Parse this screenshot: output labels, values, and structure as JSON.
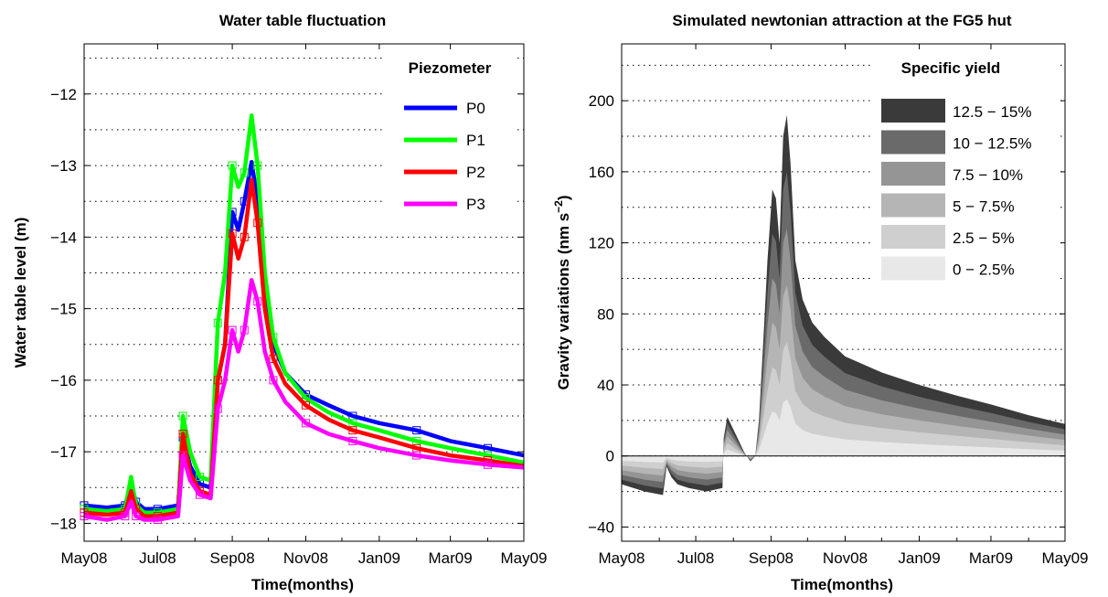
{
  "chart_data": [
    {
      "type": "line",
      "title": "Water table fluctuation",
      "xlabel": "Time(months)",
      "ylabel": "Water table level (m)",
      "xticks": [
        "May08",
        "Jul08",
        "Sep08",
        "Nov08",
        "Jan09",
        "Mar09",
        "May09"
      ],
      "xlim": [
        "2008-05-01",
        "2009-05-01"
      ],
      "ylim": [
        -18.25,
        -11.3
      ],
      "yticks": [
        -18,
        -17,
        -16,
        -15,
        -14,
        -13,
        -12
      ],
      "grid": "horizontal dotted",
      "legend": {
        "title": "Piezometer",
        "position": "top-right"
      },
      "series": [
        {
          "name": "P0",
          "color": "#0000ff",
          "x": [
            "2008-05-01",
            "2008-05-20",
            "2008-06-04",
            "2008-06-09",
            "2008-06-13",
            "2008-06-20",
            "2008-07-01",
            "2008-07-18",
            "2008-07-22",
            "2008-07-28",
            "2008-08-05",
            "2008-08-14",
            "2008-08-20",
            "2008-08-26",
            "2008-09-01",
            "2008-09-06",
            "2008-09-11",
            "2008-09-17",
            "2008-09-22",
            "2008-09-28",
            "2008-10-05",
            "2008-10-15",
            "2008-11-01",
            "2008-11-20",
            "2008-12-10",
            "2009-01-01",
            "2009-02-01",
            "2009-03-01",
            "2009-04-01",
            "2009-05-01"
          ],
          "y": [
            -17.75,
            -17.78,
            -17.75,
            -17.45,
            -17.7,
            -17.8,
            -17.8,
            -17.75,
            -16.8,
            -17.2,
            -17.45,
            -17.5,
            -16.0,
            -15.5,
            -13.65,
            -13.9,
            -13.5,
            -12.95,
            -13.5,
            -14.8,
            -15.5,
            -15.9,
            -16.2,
            -16.35,
            -16.5,
            -16.6,
            -16.7,
            -16.85,
            -16.95,
            -17.05
          ]
        },
        {
          "name": "P1",
          "color": "#00ff00",
          "x": [
            "2008-05-01",
            "2008-05-20",
            "2008-06-04",
            "2008-06-09",
            "2008-06-13",
            "2008-06-20",
            "2008-07-01",
            "2008-07-18",
            "2008-07-22",
            "2008-07-28",
            "2008-08-05",
            "2008-08-14",
            "2008-08-20",
            "2008-08-26",
            "2008-09-01",
            "2008-09-06",
            "2008-09-11",
            "2008-09-17",
            "2008-09-22",
            "2008-09-28",
            "2008-10-05",
            "2008-10-15",
            "2008-11-01",
            "2008-11-20",
            "2008-12-10",
            "2009-01-01",
            "2009-02-01",
            "2009-03-01",
            "2009-04-01",
            "2009-05-01"
          ],
          "y": [
            -17.8,
            -17.83,
            -17.8,
            -17.35,
            -17.75,
            -17.85,
            -17.85,
            -17.8,
            -16.5,
            -17.0,
            -17.35,
            -17.4,
            -15.2,
            -14.5,
            -13.0,
            -13.3,
            -13.1,
            -12.3,
            -13.0,
            -14.5,
            -15.4,
            -15.9,
            -16.25,
            -16.45,
            -16.6,
            -16.7,
            -16.85,
            -16.95,
            -17.05,
            -17.15
          ]
        },
        {
          "name": "P2",
          "color": "#ff0000",
          "x": [
            "2008-05-01",
            "2008-05-20",
            "2008-06-04",
            "2008-06-09",
            "2008-06-13",
            "2008-06-20",
            "2008-07-01",
            "2008-07-18",
            "2008-07-22",
            "2008-07-28",
            "2008-08-05",
            "2008-08-14",
            "2008-08-20",
            "2008-08-26",
            "2008-09-01",
            "2008-09-06",
            "2008-09-11",
            "2008-09-17",
            "2008-09-22",
            "2008-09-28",
            "2008-10-05",
            "2008-10-15",
            "2008-11-01",
            "2008-11-20",
            "2008-12-10",
            "2009-01-01",
            "2009-02-01",
            "2009-03-01",
            "2009-04-01",
            "2009-05-01"
          ],
          "y": [
            -17.85,
            -17.88,
            -17.85,
            -17.55,
            -17.8,
            -17.9,
            -17.9,
            -17.85,
            -16.75,
            -17.3,
            -17.55,
            -17.6,
            -16.0,
            -15.5,
            -13.95,
            -14.3,
            -14.0,
            -13.2,
            -13.8,
            -15.0,
            -15.7,
            -16.05,
            -16.35,
            -16.55,
            -16.7,
            -16.8,
            -16.95,
            -17.05,
            -17.12,
            -17.2
          ]
        },
        {
          "name": "P3",
          "color": "#ff00ff",
          "x": [
            "2008-05-01",
            "2008-05-20",
            "2008-06-04",
            "2008-06-09",
            "2008-06-13",
            "2008-06-20",
            "2008-07-01",
            "2008-07-18",
            "2008-07-22",
            "2008-07-28",
            "2008-08-05",
            "2008-08-14",
            "2008-08-20",
            "2008-08-26",
            "2008-09-01",
            "2008-09-06",
            "2008-09-11",
            "2008-09-17",
            "2008-09-22",
            "2008-09-28",
            "2008-10-05",
            "2008-10-15",
            "2008-11-01",
            "2008-11-20",
            "2008-12-10",
            "2009-01-01",
            "2009-02-01",
            "2009-03-01",
            "2009-04-01",
            "2009-05-01"
          ],
          "y": [
            -17.9,
            -17.95,
            -17.9,
            -17.7,
            -17.9,
            -17.95,
            -17.95,
            -17.9,
            -17.05,
            -17.4,
            -17.6,
            -17.65,
            -16.4,
            -16.0,
            -15.3,
            -15.6,
            -15.3,
            -14.6,
            -14.9,
            -15.6,
            -16.0,
            -16.3,
            -16.6,
            -16.75,
            -16.85,
            -16.95,
            -17.05,
            -17.12,
            -17.18,
            -17.22
          ]
        }
      ]
    },
    {
      "type": "area",
      "title": "Simulated newtonian attraction at the FG5 hut",
      "xlabel": "Time(months)",
      "ylabel": "Gravity variations (nm s",
      "ylabel_sup": "−2",
      "ylabel_close": ")",
      "xticks": [
        "May08",
        "Jul08",
        "Sep08",
        "Nov08",
        "Jan09",
        "Mar09",
        "May09"
      ],
      "xlim": [
        "2008-05-01",
        "2009-05-01"
      ],
      "ylim": [
        -48,
        232
      ],
      "yticks": [
        -40,
        0,
        40,
        80,
        120,
        160,
        200
      ],
      "grid": "horizontal dotted",
      "legend": {
        "title": "Specific yield",
        "position": "top-right"
      },
      "x": [
        "2008-05-01",
        "2008-05-20",
        "2008-06-04",
        "2008-06-07",
        "2008-06-11",
        "2008-06-16",
        "2008-06-25",
        "2008-07-10",
        "2008-07-23",
        "2008-07-24",
        "2008-07-27",
        "2008-08-03",
        "2008-08-10",
        "2008-08-15",
        "2008-08-19",
        "2008-08-22",
        "2008-08-26",
        "2008-08-29",
        "2008-09-02",
        "2008-09-05",
        "2008-09-08",
        "2008-09-11",
        "2008-09-14",
        "2008-09-17",
        "2008-09-21",
        "2008-09-27",
        "2008-10-05",
        "2008-10-15",
        "2008-11-01",
        "2008-12-01",
        "2009-01-01",
        "2009-02-01",
        "2009-03-01",
        "2009-04-01",
        "2009-05-01"
      ],
      "total": [
        -16,
        -20,
        -22,
        -6,
        -12,
        -16,
        -18,
        -20,
        -18,
        10,
        22,
        12,
        2,
        -3,
        0,
        20,
        70,
        110,
        150,
        145,
        120,
        180,
        192,
        165,
        110,
        88,
        75,
        67,
        56,
        47,
        40,
        34,
        29,
        23,
        18
      ],
      "series": [
        {
          "name": "0 − 2.5%",
          "color": "#e8e8e8"
        },
        {
          "name": "2.5 − 5%",
          "color": "#cfcfcf"
        },
        {
          "name": "5 − 7.5%",
          "color": "#b5b5b5"
        },
        {
          "name": "7.5 − 10%",
          "color": "#959595"
        },
        {
          "name": "10 − 12.5%",
          "color": "#6a6a6a"
        },
        {
          "name": "12.5 − 15%",
          "color": "#3a3a3a"
        }
      ]
    }
  ]
}
